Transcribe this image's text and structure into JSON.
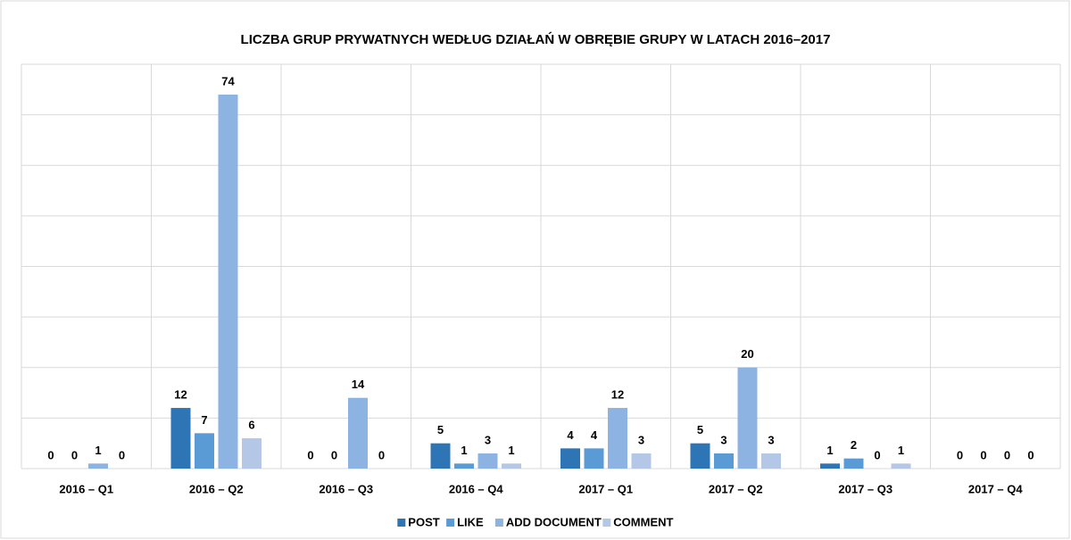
{
  "chart_data": {
    "type": "bar",
    "title": "LICZBA GRUP PRYWATNYCH WEDŁUG DZIAŁAŃ W OBRĘBIE GRUPY W LATACH 2016–2017",
    "categories": [
      "2016 – Q1",
      "2016 – Q2",
      "2016 – Q3",
      "2016 – Q4",
      "2017 – Q1",
      "2017 – Q2",
      "2017 – Q3",
      "2017 – Q4"
    ],
    "series": [
      {
        "name": "POST",
        "color": "#2e75b6",
        "values": [
          0,
          12,
          0,
          5,
          4,
          5,
          1,
          0
        ]
      },
      {
        "name": "LIKE",
        "color": "#5b9bd5",
        "values": [
          0,
          7,
          0,
          1,
          4,
          3,
          2,
          0
        ]
      },
      {
        "name": "ADD DOCUMENT",
        "color": "#8db3e2",
        "values": [
          1,
          74,
          14,
          3,
          12,
          20,
          0,
          0
        ]
      },
      {
        "name": "COMMENT",
        "color": "#b4c7e7",
        "values": [
          0,
          6,
          0,
          1,
          3,
          3,
          1,
          0
        ]
      }
    ],
    "ylim": [
      0,
      80
    ],
    "yticks": [
      0,
      10,
      20,
      30,
      40,
      50,
      60,
      70,
      80
    ],
    "grid": true,
    "legend": "bottom"
  }
}
